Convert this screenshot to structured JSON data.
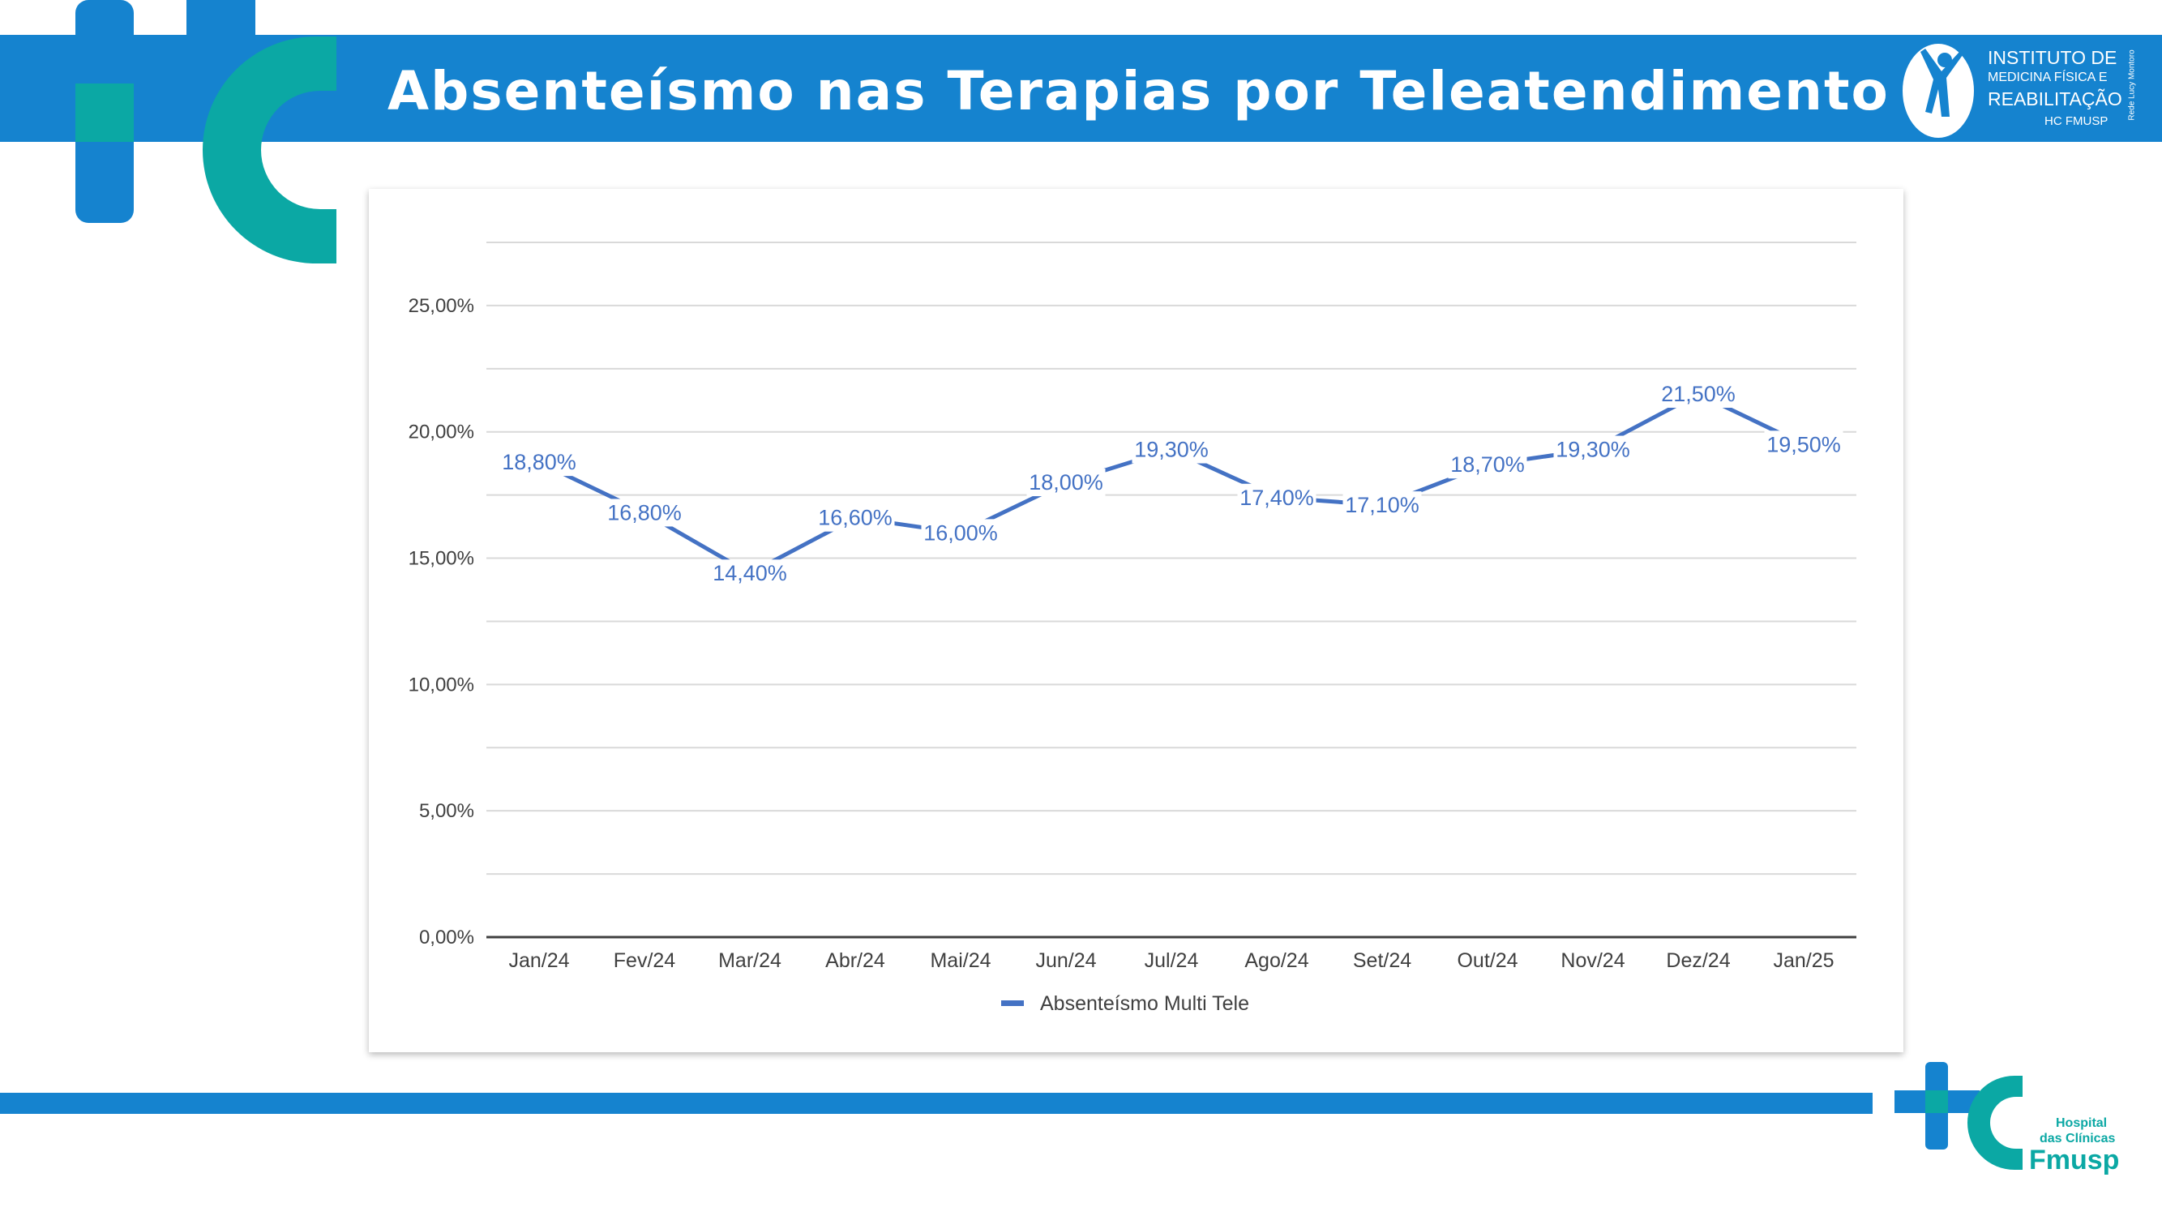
{
  "slide": {
    "title": "Absenteísmo nas Terapias por Teleatendimento"
  },
  "logos": {
    "imrea": {
      "line1": "INSTITUTO DE",
      "line2": "MEDICINA FÍSICA E",
      "line3": "REABILITAÇÃO",
      "line4": "HC FMUSP",
      "side": "Rede Lucy Montoro"
    },
    "hc": {
      "line1": "Hospital",
      "line2": "das Clínicas",
      "line3": "Fmusp"
    }
  },
  "colors": {
    "banner": "#1583cf",
    "teal": "#0ba8a4",
    "series": "#4472c4"
  },
  "chart_data": {
    "type": "line",
    "title": "",
    "xlabel": "",
    "ylabel": "",
    "categories": [
      "Jan/24",
      "Fev/24",
      "Mar/24",
      "Abr/24",
      "Mai/24",
      "Jun/24",
      "Jul/24",
      "Ago/24",
      "Set/24",
      "Out/24",
      "Nov/24",
      "Dez/24",
      "Jan/25"
    ],
    "series": [
      {
        "name": "Absenteísmo Multi Tele",
        "values": [
          18.8,
          16.8,
          14.4,
          16.6,
          16.0,
          18.0,
          19.3,
          17.4,
          17.1,
          18.7,
          19.3,
          21.5,
          19.5
        ],
        "labels": [
          "18,80%",
          "16,80%",
          "14,40%",
          "16,60%",
          "16,00%",
          "18,00%",
          "19,30%",
          "17,40%",
          "17,10%",
          "18,70%",
          "19,30%",
          "21,50%",
          "19,50%"
        ]
      }
    ],
    "y_ticks": [
      0,
      5,
      10,
      15,
      20,
      25
    ],
    "y_tick_labels": [
      "0,00%",
      "5,00%",
      "10,00%",
      "15,00%",
      "20,00%",
      "25,00%"
    ],
    "ylim": [
      0,
      27.5
    ],
    "grid": true,
    "legend": "bottom"
  }
}
